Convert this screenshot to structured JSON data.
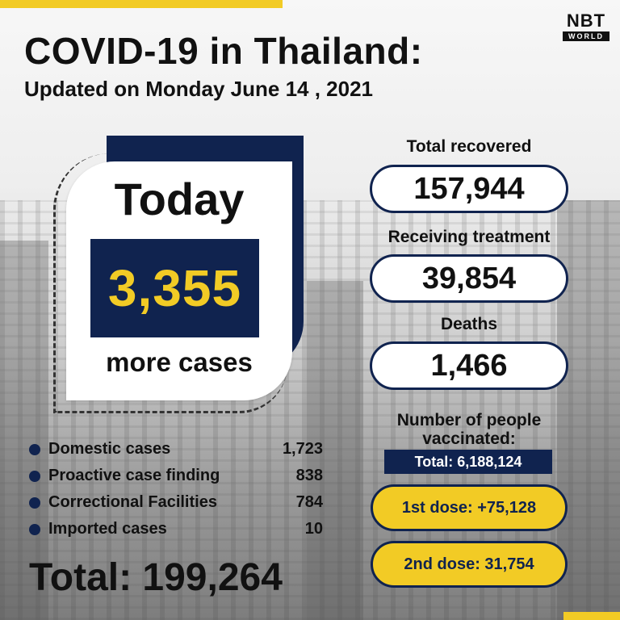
{
  "header": {
    "title": "COVID-19 in Thailand:",
    "subtitle": "Updated on Monday June 14 , 2021"
  },
  "logo": {
    "main": "NBT",
    "sub": "WORLD"
  },
  "today": {
    "label": "Today",
    "value": "3,355",
    "suffix": "more cases"
  },
  "breakdown": [
    {
      "label": "Domestic cases",
      "value": "1,723"
    },
    {
      "label": "Proactive case finding",
      "value": "838"
    },
    {
      "label": "Correctional Facilities",
      "value": "784"
    },
    {
      "label": "Imported cases",
      "value": "10"
    }
  ],
  "total": {
    "text": "Total: 199,264"
  },
  "stats": {
    "recovered": {
      "label": "Total recovered",
      "value": "157,944"
    },
    "treatment": {
      "label": "Receiving treatment",
      "value": "39,854"
    },
    "deaths": {
      "label": "Deaths",
      "value": "1,466"
    }
  },
  "vaccination": {
    "heading": "Number of people vaccinated:",
    "total": "Total: 6,188,124",
    "first_dose": "1st dose: +75,128",
    "second_dose": "2nd dose: 31,754"
  },
  "colors": {
    "navy": "#10234f",
    "yellow": "#f2cb25"
  }
}
